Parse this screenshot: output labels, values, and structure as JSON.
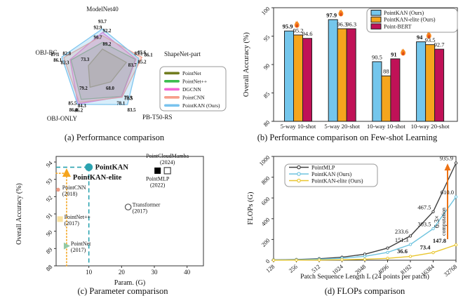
{
  "figure": {
    "background": "#ffffff",
    "panels": {
      "a": {
        "caption": "(a)  Performance comparison"
      },
      "b": {
        "caption": "(b)  Performance comparison on Few-shot Learning"
      },
      "c": {
        "caption": "(c)  Parameter comparison"
      },
      "d": {
        "caption": "(d)  FLOPs comparison"
      }
    }
  },
  "chart_data": [
    {
      "panel": "a",
      "type": "radar",
      "axes": [
        "ModelNet40",
        "ShapeNet-part",
        "PB-T50-RS",
        "OBJ-ONLY",
        "OBJ-BG"
      ],
      "axis_ranges": [
        [
          84.5,
          94.2
        ],
        [
          80.0,
          86.4
        ],
        [
          60.0,
          84.0
        ],
        [
          72.0,
          86.8
        ],
        [
          66.0,
          87.5
        ]
      ],
      "series": [
        {
          "name": "PointNet",
          "color": "#717D1F",
          "values": [
            89.2,
            83.7,
            68.0,
            79.2,
            73.3
          ]
        },
        {
          "name": "PointNet++",
          "color": "#3BBD4E",
          "values": [
            90.7,
            85.1,
            77.9,
            84.3,
            82.3
          ]
        },
        {
          "name": "DGCNN",
          "color": "#F266D6",
          "values": [
            92.9,
            85.2,
            78.1,
            86.2,
            82.8
          ]
        },
        {
          "name": "PointCNN",
          "color": "#F69E8B",
          "values": [
            92.2,
            86.1,
            78.5,
            85.5,
            86.1
          ]
        },
        {
          "name": "PointKAN (Ours)",
          "color": "#79C3EE",
          "values": [
            93.7,
            85.6,
            83.5,
            86.4,
            87.1
          ]
        }
      ],
      "legend_position": "right"
    },
    {
      "panel": "b",
      "type": "bar",
      "categories": [
        "5-way 10-shot",
        "5-way 20-shot",
        "10-way 10-shot",
        "10-way 20-shot"
      ],
      "series": [
        {
          "name": "PointKAN (Ours)",
          "color": "#74C6EC",
          "values": [
            95.9,
            97.9,
            90.5,
            94
          ]
        },
        {
          "name": "PointKAN-elite (Ours)",
          "color": "#F5A51D",
          "values": [
            95.2,
            96.3,
            88,
            93.5
          ]
        },
        {
          "name": "Point-BERT",
          "color": "#C01157",
          "values": [
            94.6,
            96.3,
            91,
            92.7
          ]
        }
      ],
      "highlights": [
        {
          "category": 0,
          "series": 0
        },
        {
          "category": 1,
          "series": 0
        },
        {
          "category": 2,
          "series": 2
        },
        {
          "category": 3,
          "series": 0
        }
      ],
      "flame_colors": {
        "outer": "#F6881F",
        "inner": "#E04A1A"
      },
      "ylabel": "Overall  Accuracy  (%)",
      "ylim": [
        80,
        100
      ],
      "yticks": [
        80,
        85,
        90,
        95,
        100
      ],
      "grid": false,
      "legend_position": "top-right"
    },
    {
      "panel": "c",
      "type": "scatter",
      "xlabel": "Param.  (G)",
      "ylabel": "Overall  Accuracy  (%)",
      "xlim": [
        0,
        45
      ],
      "xticks": [
        10,
        20,
        30,
        40
      ],
      "ylim": [
        88,
        94
      ],
      "yticks": [
        88,
        89,
        90,
        91,
        92,
        93,
        94
      ],
      "points": [
        {
          "label": "PointKAN",
          "sublabel": "",
          "x": 10,
          "y": 93.7,
          "marker": "circle",
          "color": "#2BA3B0",
          "bold": true,
          "guide": "dashed",
          "label_pos": "right"
        },
        {
          "label": "PointKAN-elite",
          "sublabel": "",
          "x": 3.2,
          "y": 93.35,
          "marker": "triangle-up",
          "color": "#F5A51D",
          "bold": true,
          "guide": "dotted",
          "label_pos": "right"
        },
        {
          "label": "PointCNN",
          "sublabel": "(2018)",
          "x": 0.6,
          "y": 92.4,
          "marker": "circle-small",
          "color": "#EE9C85",
          "bold": false,
          "guide": "none",
          "label_pos": "right"
        },
        {
          "label": "PointNet++",
          "sublabel": "(2017)",
          "x": 1.2,
          "y": 90.7,
          "marker": "square",
          "color": "#FAE3A2",
          "bold": false,
          "guide": "none",
          "label_pos": "right"
        },
        {
          "label": "PointNet",
          "sublabel": "(2017)",
          "x": 3.2,
          "y": 89.15,
          "marker": "triangle-right",
          "color": "#93C9A3",
          "bold": false,
          "guide": "none",
          "label_pos": "right"
        },
        {
          "label": "Transformer",
          "sublabel": "(2017)",
          "x": 22,
          "y": 91.4,
          "marker": "circle-open",
          "color": "#555555",
          "bold": false,
          "guide": "none",
          "label_pos": "right"
        },
        {
          "label": "PointMLP",
          "sublabel": "(2022)",
          "x": 31,
          "y": 93.5,
          "marker": "square-filled",
          "color": "#000000",
          "bold": false,
          "guide": "none",
          "label_pos": "below"
        },
        {
          "label": "PointCloudMamba",
          "sublabel": "(2024)",
          "x": 34,
          "y": 93.5,
          "marker": "square-open",
          "color": "#444444",
          "bold": false,
          "guide": "none",
          "label_pos": "above"
        }
      ]
    },
    {
      "panel": "d",
      "type": "line",
      "xlabel": "Patch Sequence Length L (24 points per patch)",
      "ylabel": "FLOPs (G)",
      "x_categories": [
        128,
        256,
        512,
        1024,
        2048,
        4096,
        8192,
        16384,
        32768
      ],
      "ylim": [
        0,
        1000
      ],
      "yticks": [
        0,
        200,
        400,
        600,
        800,
        1000
      ],
      "series": [
        {
          "name": "PointMLP",
          "color": "#404040",
          "values": [
            3.7,
            7.3,
            14.6,
            29.2,
            58.4,
            116.8,
            233.6,
            467.5,
            935.9
          ]
        },
        {
          "name": "PointKAN (Ours)",
          "color": "#6FC4DF",
          "values": [
            2.4,
            4.8,
            9.5,
            18.9,
            37.9,
            75.7,
            151.3,
            303.5,
            610.0
          ]
        },
        {
          "name": "PointKAN-elite (Ours)",
          "color": "#E9C62F",
          "values": [
            0.6,
            1.2,
            2.3,
            4.6,
            9.2,
            18.3,
            36.6,
            73.4,
            147.8
          ]
        }
      ],
      "point_labels": [
        {
          "series": 0,
          "index": 6,
          "text": "233.6",
          "bold": false
        },
        {
          "series": 0,
          "index": 7,
          "text": "467.5",
          "bold": false
        },
        {
          "series": 0,
          "index": 8,
          "text": "935.9",
          "bold": false
        },
        {
          "series": 1,
          "index": 6,
          "text": "151.3",
          "bold": false
        },
        {
          "series": 1,
          "index": 7,
          "text": "303.5",
          "bold": false
        },
        {
          "series": 1,
          "index": 8,
          "text": "610.0",
          "bold": false
        },
        {
          "series": 2,
          "index": 6,
          "text": "36.6",
          "bold": true
        },
        {
          "series": 2,
          "index": 7,
          "text": "73.4",
          "bold": true
        },
        {
          "series": 2,
          "index": 8,
          "text": "147.8",
          "bold": true
        }
      ],
      "annotation": {
        "ratio": "6.3×",
        "word": "computation",
        "color": "#ED7214"
      },
      "legend_position": "top-left"
    }
  ]
}
